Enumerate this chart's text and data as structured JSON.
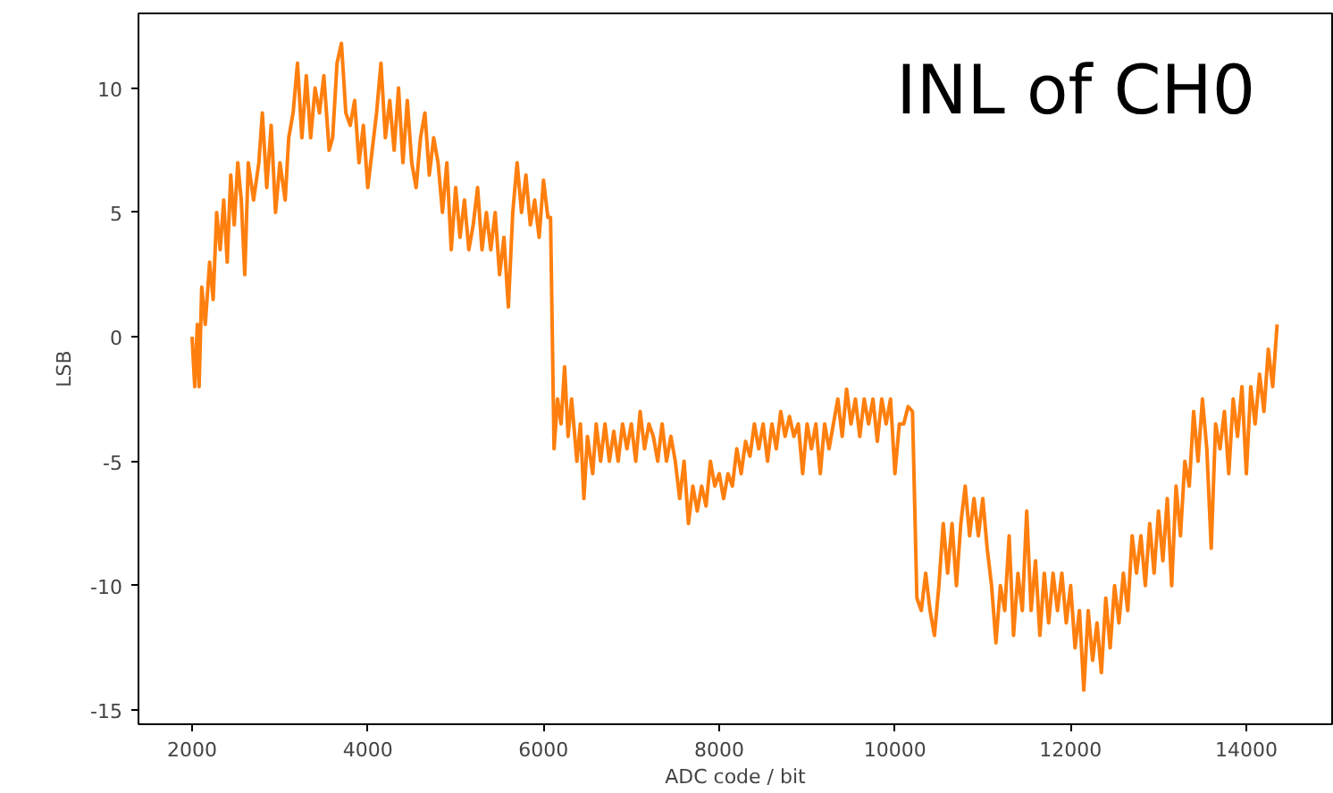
{
  "chart_data": {
    "type": "line",
    "xlabel": "ADC code / bit",
    "ylabel": "LSB",
    "annotations": [
      "INL of CH0"
    ],
    "xlim": [
      1390,
      14976
    ],
    "ylim": [
      -15.57,
      13.0
    ],
    "xticks": [
      2000,
      4000,
      6000,
      8000,
      10000,
      12000,
      14000
    ],
    "yticks": [
      -15,
      -10,
      -5,
      0,
      5,
      10
    ],
    "grid": false,
    "series": [
      {
        "color": "#ff7f0e",
        "x": [
          2000,
          2030,
          2060,
          2080,
          2110,
          2150,
          2200,
          2240,
          2280,
          2320,
          2360,
          2400,
          2440,
          2480,
          2520,
          2560,
          2600,
          2640,
          2700,
          2760,
          2800,
          2850,
          2900,
          2950,
          3000,
          3060,
          3100,
          3150,
          3200,
          3250,
          3300,
          3350,
          3400,
          3450,
          3500,
          3560,
          3600,
          3650,
          3700,
          3750,
          3800,
          3850,
          3900,
          3950,
          4000,
          4050,
          4100,
          4150,
          4200,
          4250,
          4300,
          4350,
          4400,
          4450,
          4500,
          4550,
          4600,
          4650,
          4700,
          4750,
          4800,
          4850,
          4900,
          4950,
          5000,
          5050,
          5100,
          5150,
          5200,
          5250,
          5300,
          5350,
          5400,
          5450,
          5500,
          5550,
          5600,
          5650,
          5700,
          5750,
          5800,
          5850,
          5900,
          5950,
          6000,
          6050,
          6080,
          6120,
          6160,
          6200,
          6240,
          6280,
          6320,
          6380,
          6420,
          6460,
          6500,
          6560,
          6600,
          6650,
          6700,
          6750,
          6800,
          6850,
          6900,
          6950,
          7000,
          7050,
          7100,
          7150,
          7200,
          7250,
          7300,
          7350,
          7400,
          7450,
          7500,
          7550,
          7600,
          7650,
          7700,
          7750,
          7800,
          7850,
          7900,
          7950,
          8000,
          8050,
          8100,
          8150,
          8200,
          8250,
          8300,
          8350,
          8400,
          8450,
          8500,
          8550,
          8600,
          8650,
          8700,
          8750,
          8800,
          8850,
          8900,
          8950,
          9000,
          9050,
          9100,
          9150,
          9200,
          9250,
          9300,
          9350,
          9400,
          9450,
          9500,
          9550,
          9600,
          9650,
          9700,
          9750,
          9800,
          9850,
          9900,
          9950,
          10000,
          10050,
          10100,
          10150,
          10200,
          10250,
          10300,
          10350,
          10400,
          10450,
          10500,
          10550,
          10600,
          10650,
          10700,
          10750,
          10800,
          10850,
          10900,
          10950,
          11000,
          11050,
          11100,
          11150,
          11200,
          11250,
          11300,
          11350,
          11400,
          11450,
          11500,
          11550,
          11600,
          11650,
          11700,
          11750,
          11800,
          11850,
          11900,
          11950,
          12000,
          12050,
          12100,
          12150,
          12200,
          12250,
          12300,
          12350,
          12400,
          12450,
          12500,
          12550,
          12600,
          12650,
          12700,
          12750,
          12800,
          12850,
          12900,
          12950,
          13000,
          13050,
          13100,
          13150,
          13200,
          13250,
          13300,
          13350,
          13400,
          13450,
          13500,
          13550,
          13600,
          13650,
          13700,
          13750,
          13800,
          13850,
          13900,
          13950,
          14000,
          14050,
          14100,
          14150,
          14200,
          14250,
          14300,
          14350
        ],
        "values": [
          0,
          -2,
          0.5,
          -2,
          2,
          0.5,
          3,
          1.5,
          5,
          3.5,
          5.5,
          3,
          6.5,
          4.5,
          7,
          5.5,
          2.5,
          7,
          5.5,
          7,
          9,
          6,
          8.5,
          5,
          7,
          5.5,
          8,
          9,
          11,
          8,
          10.5,
          8,
          10,
          9,
          10.5,
          7.5,
          8,
          11,
          11.8,
          9,
          8.5,
          9.5,
          7,
          8.5,
          6,
          7.5,
          9,
          11,
          8,
          9.5,
          7.5,
          10,
          7,
          9.5,
          7,
          6,
          8,
          9,
          6.5,
          8,
          7,
          5,
          7,
          3.5,
          6,
          4,
          5.5,
          3.5,
          4.5,
          6,
          3.5,
          5,
          3.5,
          5,
          2.5,
          4,
          1.2,
          5,
          7,
          5,
          6.5,
          4.5,
          5.5,
          4,
          6.3,
          4.8,
          4.8,
          -4.5,
          -2.5,
          -3.5,
          -1.2,
          -4,
          -2.5,
          -5,
          -3.5,
          -6.5,
          -4,
          -5.5,
          -3.5,
          -5,
          -3.5,
          -5,
          -3.8,
          -5,
          -3.5,
          -4.5,
          -3.5,
          -5,
          -3,
          -4.5,
          -3.5,
          -4,
          -5,
          -3.5,
          -5,
          -4,
          -5,
          -6.5,
          -5,
          -7.5,
          -6,
          -7,
          -6,
          -6.8,
          -5,
          -6,
          -5.5,
          -6.5,
          -5.5,
          -6,
          -4.5,
          -5.5,
          -4.2,
          -4.8,
          -3.5,
          -4.5,
          -3.5,
          -5,
          -3.5,
          -4.5,
          -3,
          -4,
          -3.2,
          -4,
          -3.5,
          -5.5,
          -3.5,
          -4.5,
          -3.5,
          -5.5,
          -3.5,
          -4.5,
          -3.5,
          -2.5,
          -4,
          -2.1,
          -3.5,
          -2.5,
          -4,
          -2.5,
          -3.5,
          -2.5,
          -4.2,
          -2.5,
          -3.5,
          -2.5,
          -5.5,
          -3.5,
          -3.5,
          -2.8,
          -3,
          -10.5,
          -11,
          -9.5,
          -11,
          -12,
          -10,
          -7.5,
          -9.5,
          -7.5,
          -10,
          -7.5,
          -6,
          -8,
          -6.5,
          -8,
          -6.5,
          -8.5,
          -10,
          -12.3,
          -10,
          -11,
          -8,
          -12,
          -9.5,
          -11,
          -7,
          -11,
          -9,
          -12,
          -9.5,
          -11.5,
          -9.5,
          -11,
          -9.5,
          -11.5,
          -10,
          -12.5,
          -11,
          -14.2,
          -11,
          -13,
          -11.5,
          -13.5,
          -10.5,
          -12.5,
          -10,
          -11.5,
          -9.5,
          -11,
          -8,
          -9.5,
          -8,
          -10,
          -7.5,
          -9.5,
          -7,
          -9,
          -6.5,
          -10,
          -6,
          -8,
          -5,
          -6,
          -3,
          -5,
          -2.5,
          -4.5,
          -8.5,
          -3.5,
          -4.5,
          -3,
          -5.5,
          -2.5,
          -4,
          -2,
          -5.5,
          -2,
          -3.5,
          -1.5,
          -3,
          -0.5,
          -2,
          0.5
        ]
      }
    ]
  }
}
